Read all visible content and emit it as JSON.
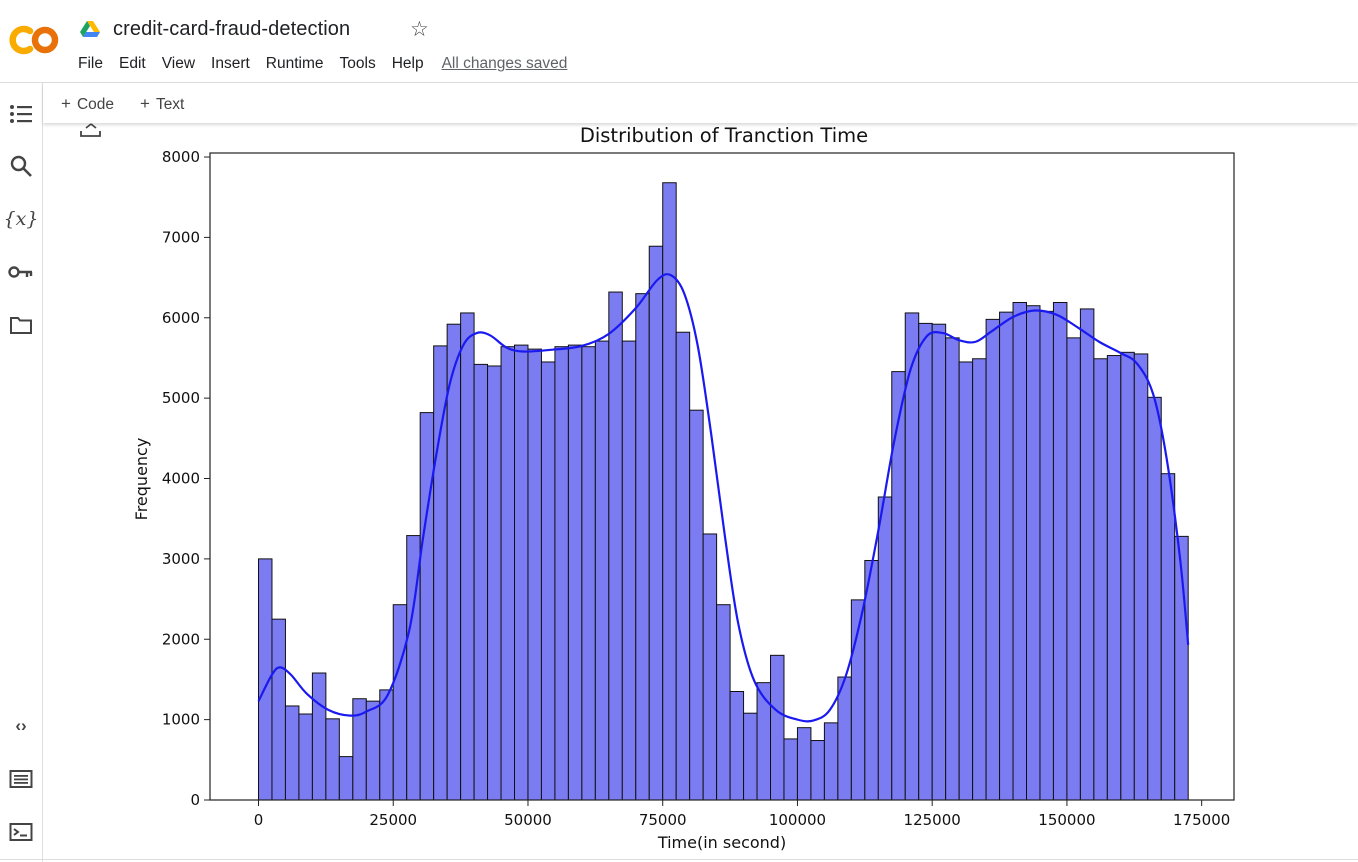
{
  "app": {
    "notebook_title": "credit-card-fraud-detection",
    "save_status": "All changes saved",
    "menu": [
      "File",
      "Edit",
      "View",
      "Insert",
      "Runtime",
      "Tools",
      "Help"
    ],
    "logo_icon": "colab-logo",
    "logo_colors": [
      "#f9ab00",
      "#e8710a"
    ]
  },
  "toolbar": {
    "add_code": "Code",
    "add_text": "Text"
  },
  "sidebar": {
    "icons": [
      "table-of-contents-icon",
      "search-icon",
      "variables-icon",
      "secrets-key-icon",
      "files-folder-icon",
      "code-snippets-icon",
      "command-palette-icon",
      "terminal-icon"
    ]
  },
  "chart_data": {
    "type": "bar",
    "title": "Distribution of Tranction Time",
    "xlabel": "Time(in second)",
    "ylabel": "Frequency",
    "xlim": [
      -9000,
      181000
    ],
    "ylim": [
      0,
      8050
    ],
    "xticks": [
      0,
      25000,
      50000,
      75000,
      100000,
      125000,
      150000,
      175000
    ],
    "yticks": [
      0,
      1000,
      2000,
      3000,
      4000,
      5000,
      6000,
      7000,
      8000
    ],
    "bin_start": 0,
    "bin_width": 2500,
    "values": [
      3000,
      2250,
      1170,
      1070,
      1580,
      1010,
      540,
      1260,
      1230,
      1370,
      2430,
      3290,
      4820,
      5650,
      5920,
      6060,
      5420,
      5400,
      5640,
      5660,
      5610,
      5450,
      5640,
      5660,
      5640,
      5710,
      6320,
      5710,
      6300,
      6890,
      7680,
      5820,
      4850,
      3310,
      2430,
      1350,
      1080,
      1460,
      1800,
      760,
      900,
      740,
      960,
      1530,
      2490,
      2980,
      3770,
      5330,
      6060,
      5930,
      5920,
      5750,
      5450,
      5490,
      5980,
      6070,
      6190,
      6150,
      6080,
      6190,
      5750,
      6110,
      5490,
      5530,
      5570,
      5550,
      5010,
      4060,
      3280
    ],
    "kde": [
      [
        0,
        1230
      ],
      [
        2500,
        1560
      ],
      [
        4000,
        1650
      ],
      [
        6000,
        1560
      ],
      [
        9000,
        1320
      ],
      [
        13000,
        1120
      ],
      [
        17000,
        1050
      ],
      [
        20000,
        1100
      ],
      [
        24000,
        1310
      ],
      [
        28000,
        2120
      ],
      [
        30500,
        3250
      ],
      [
        33000,
        4300
      ],
      [
        35500,
        5180
      ],
      [
        38000,
        5660
      ],
      [
        40500,
        5810
      ],
      [
        43000,
        5780
      ],
      [
        46000,
        5630
      ],
      [
        49000,
        5580
      ],
      [
        54000,
        5600
      ],
      [
        60000,
        5650
      ],
      [
        65000,
        5800
      ],
      [
        70000,
        6120
      ],
      [
        74000,
        6470
      ],
      [
        76500,
        6530
      ],
      [
        79000,
        6300
      ],
      [
        81500,
        5650
      ],
      [
        84000,
        4550
      ],
      [
        86500,
        3300
      ],
      [
        89000,
        2200
      ],
      [
        92000,
        1480
      ],
      [
        96000,
        1120
      ],
      [
        100000,
        1000
      ],
      [
        103000,
        990
      ],
      [
        106000,
        1120
      ],
      [
        109000,
        1550
      ],
      [
        112000,
        2330
      ],
      [
        115000,
        3350
      ],
      [
        118000,
        4480
      ],
      [
        121000,
        5360
      ],
      [
        124000,
        5770
      ],
      [
        127000,
        5810
      ],
      [
        130000,
        5720
      ],
      [
        133000,
        5700
      ],
      [
        136000,
        5830
      ],
      [
        140000,
        6010
      ],
      [
        144000,
        6090
      ],
      [
        148000,
        6040
      ],
      [
        152000,
        5880
      ],
      [
        156000,
        5700
      ],
      [
        160000,
        5560
      ],
      [
        163000,
        5430
      ],
      [
        166000,
        5050
      ],
      [
        168500,
        4250
      ],
      [
        171000,
        3000
      ],
      [
        172500,
        1930
      ]
    ],
    "bar_color": "#7b7bf2",
    "bar_edge_color": "#111111",
    "kde_color": "#1a1af0",
    "grid": false,
    "legend": "none"
  }
}
